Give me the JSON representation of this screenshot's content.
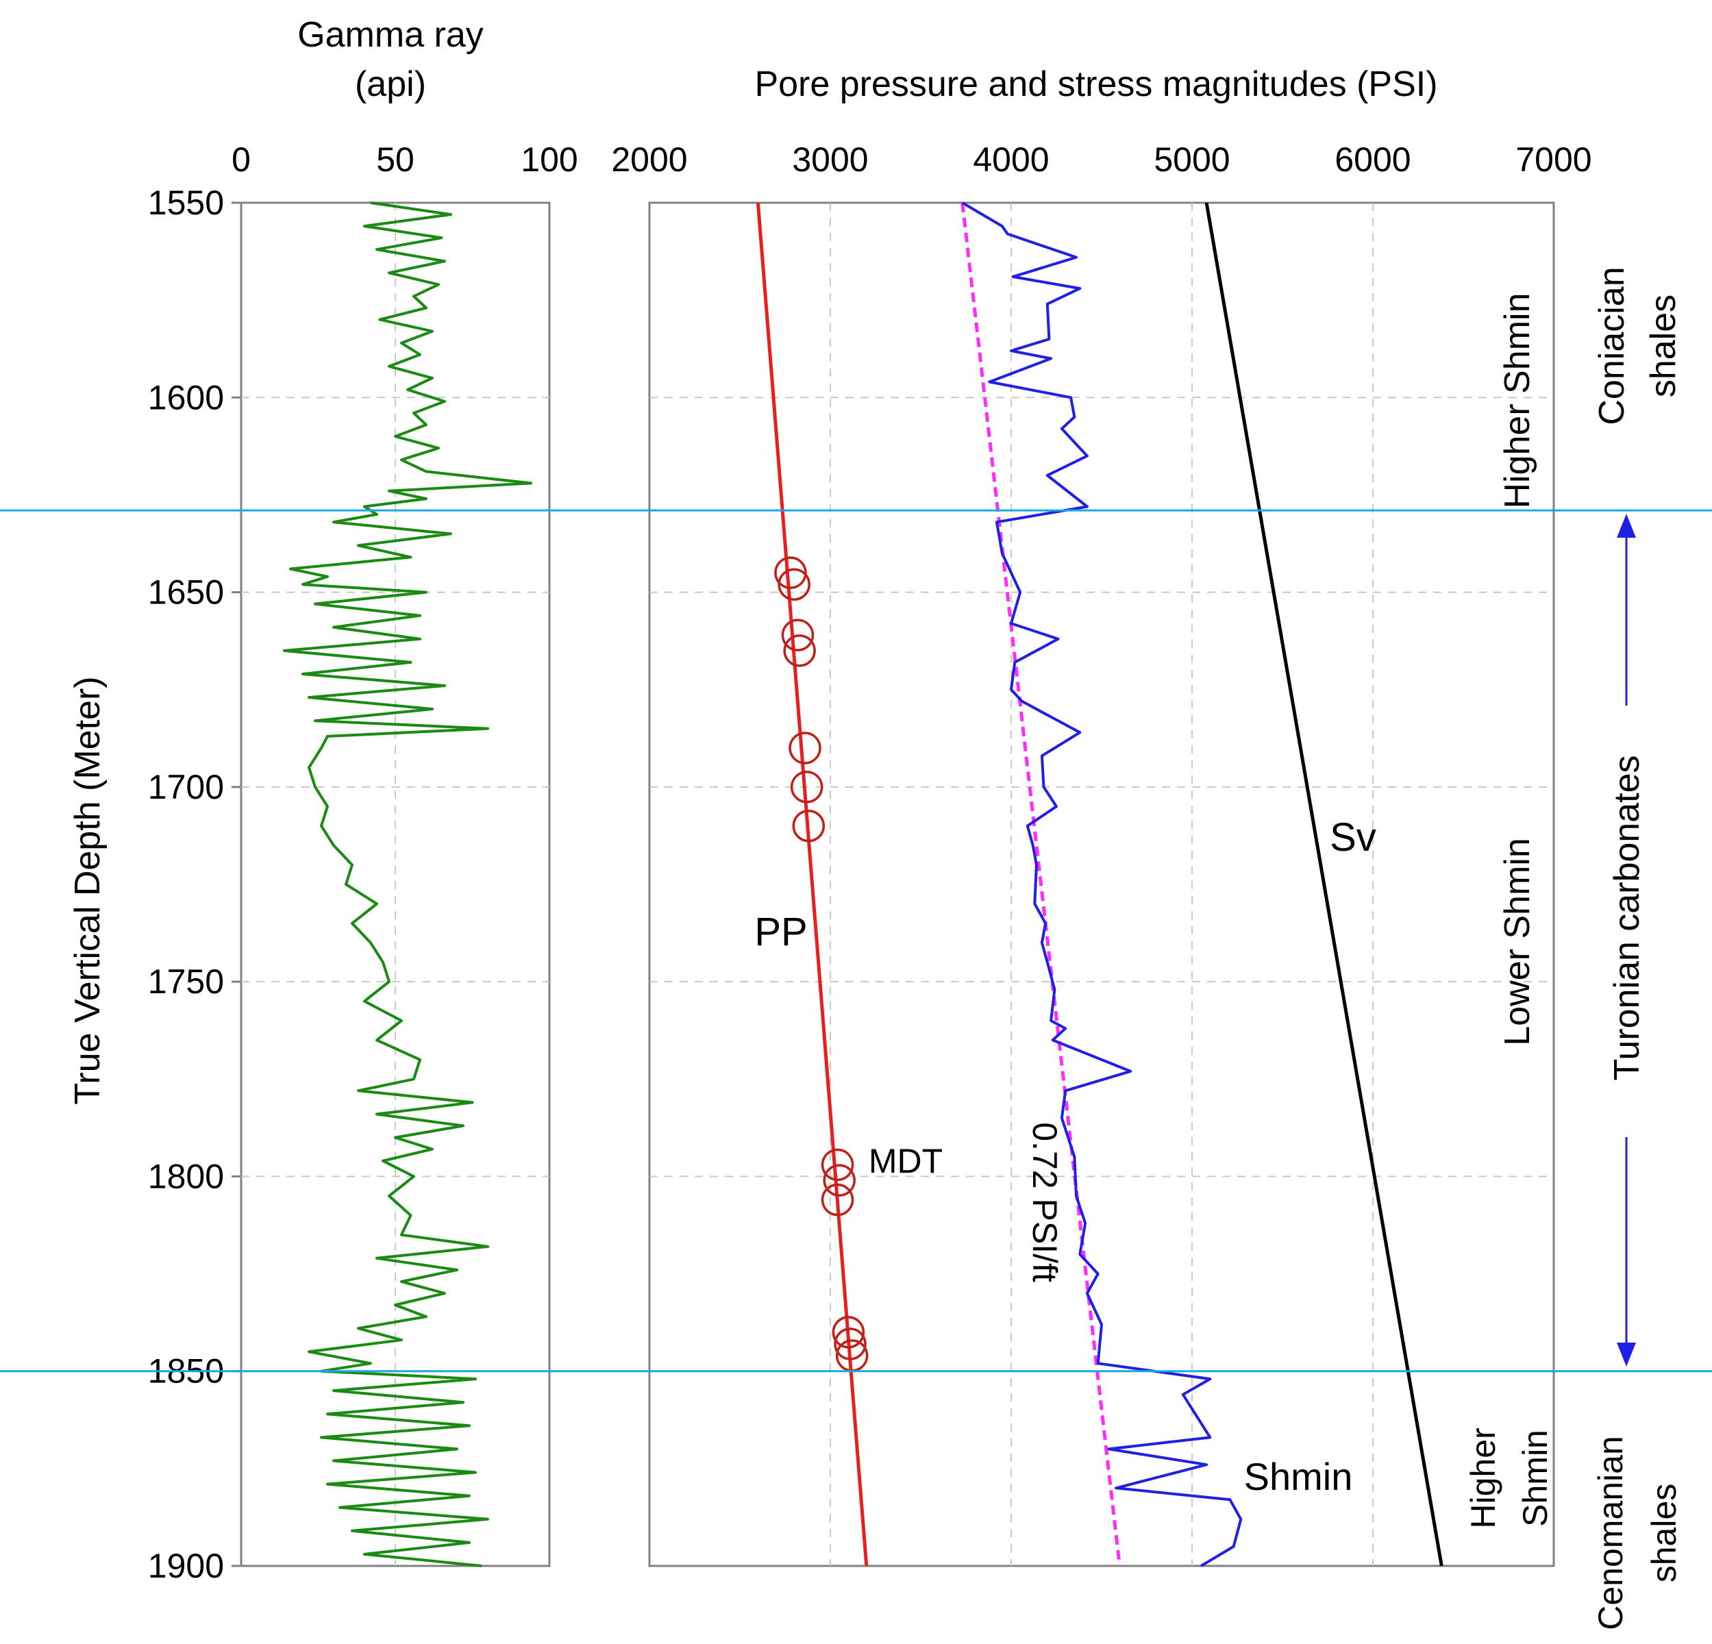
{
  "chart_data": [
    {
      "type": "line",
      "panel": "gamma-ray",
      "title_line1": "Gamma ray",
      "title_line2": "(api)",
      "ylabel": "True Vertical Depth (Meter)",
      "xlim": [
        0,
        100
      ],
      "ylim": [
        1550,
        1900
      ],
      "y_inverted": true,
      "xticks": [
        0,
        50,
        100
      ],
      "yticks": [
        1550,
        1600,
        1650,
        1700,
        1750,
        1800,
        1850,
        1900
      ],
      "grid": true,
      "series": [
        {
          "name": "Gamma ray",
          "color": "#1a8a12",
          "depth": [
            1550,
            1553,
            1556,
            1559,
            1562,
            1565,
            1568,
            1571,
            1574,
            1577,
            1580,
            1583,
            1586,
            1589,
            1592,
            1595,
            1598,
            1601,
            1604,
            1607,
            1610,
            1613,
            1616,
            1619,
            1622,
            1624,
            1626,
            1628,
            1630,
            1632,
            1635,
            1638,
            1641,
            1644,
            1646,
            1648,
            1650,
            1653,
            1656,
            1659,
            1662,
            1665,
            1668,
            1671,
            1674,
            1677,
            1680,
            1683,
            1685,
            1687,
            1690,
            1695,
            1700,
            1705,
            1710,
            1715,
            1720,
            1725,
            1730,
            1735,
            1740,
            1745,
            1750,
            1755,
            1760,
            1765,
            1770,
            1775,
            1778,
            1781,
            1784,
            1787,
            1790,
            1793,
            1796,
            1800,
            1805,
            1810,
            1815,
            1818,
            1821,
            1824,
            1827,
            1830,
            1833,
            1836,
            1839,
            1842,
            1845,
            1848,
            1850,
            1852,
            1855,
            1858,
            1861,
            1864,
            1867,
            1870,
            1873,
            1876,
            1879,
            1882,
            1885,
            1888,
            1891,
            1894,
            1897,
            1900
          ],
          "values": [
            42,
            68,
            40,
            65,
            44,
            66,
            48,
            64,
            56,
            60,
            45,
            62,
            52,
            58,
            48,
            62,
            54,
            66,
            56,
            60,
            50,
            64,
            52,
            60,
            94,
            48,
            60,
            40,
            44,
            30,
            68,
            38,
            55,
            16,
            28,
            20,
            60,
            24,
            58,
            30,
            58,
            14,
            55,
            20,
            66,
            22,
            62,
            24,
            80,
            28,
            26,
            22,
            24,
            28,
            26,
            30,
            36,
            34,
            44,
            36,
            42,
            46,
            48,
            40,
            52,
            44,
            58,
            56,
            38,
            75,
            44,
            72,
            50,
            62,
            46,
            56,
            48,
            55,
            52,
            80,
            44,
            70,
            52,
            66,
            50,
            60,
            38,
            52,
            22,
            42,
            26,
            76,
            30,
            72,
            28,
            74,
            26,
            70,
            30,
            76,
            28,
            74,
            32,
            80,
            36,
            74,
            40,
            78
          ]
        }
      ]
    },
    {
      "type": "line",
      "panel": "pressure-stress",
      "title": "Pore pressure and stress magnitudes (PSI)",
      "xlim": [
        2000,
        7000
      ],
      "ylim": [
        1550,
        1900
      ],
      "y_inverted": true,
      "xticks": [
        2000,
        3000,
        4000,
        5000,
        6000,
        7000
      ],
      "grid": true,
      "series": [
        {
          "name": "PP",
          "label": "PP",
          "color": "#e6201f",
          "x": [
            2600,
            3200
          ],
          "depth": [
            1550,
            1900
          ]
        },
        {
          "name": "Sv",
          "label": "Sv",
          "color": "#000000",
          "x": [
            5080,
            6380
          ],
          "depth": [
            1550,
            1900
          ]
        },
        {
          "name": "0.72 PSI/ft",
          "label": "0.72 PSI/ft",
          "color": "#ff2bff",
          "style": "dashed",
          "x": [
            3730,
            4600
          ],
          "depth": [
            1550,
            1900
          ]
        },
        {
          "name": "Shmin",
          "label": "Shmin",
          "color": "#1f1fe6",
          "x": [
            3730,
            3950,
            3980,
            4360,
            4010,
            4380,
            4200,
            4210,
            4000,
            4220,
            3880,
            4330,
            4350,
            4280,
            4420,
            4200,
            4420,
            3920,
            3950,
            4050,
            4000,
            4260,
            4020,
            4000,
            4060,
            4380,
            4170,
            4180,
            4250,
            4090,
            4120,
            4140,
            4130,
            4190,
            4170,
            4200,
            4240,
            4220,
            4300,
            4230,
            4660,
            4300,
            4280,
            4350,
            4360,
            4410,
            4380,
            4480,
            4420,
            4500,
            4480,
            5100,
            4950,
            5100,
            4540,
            5080,
            4580,
            5210,
            5270,
            5230,
            5050
          ],
          "depth": [
            1550,
            1556,
            1558,
            1564,
            1569,
            1572,
            1576,
            1585,
            1588,
            1590,
            1596,
            1600,
            1605,
            1608,
            1615,
            1620,
            1628,
            1632,
            1640,
            1650,
            1658,
            1662,
            1668,
            1675,
            1678,
            1686,
            1692,
            1700,
            1705,
            1710,
            1715,
            1720,
            1730,
            1735,
            1740,
            1745,
            1752,
            1760,
            1762,
            1765,
            1773,
            1778,
            1785,
            1795,
            1805,
            1812,
            1820,
            1825,
            1830,
            1838,
            1848,
            1852,
            1856,
            1867,
            1870,
            1874,
            1880,
            1883,
            1888,
            1895,
            1900
          ]
        }
      ],
      "mdt_points": {
        "label": "MDT",
        "color": "#c0201a",
        "x": [
          2780,
          2800,
          2820,
          2830,
          2860,
          2870,
          2880,
          3040,
          3050,
          3040,
          3100,
          3110,
          3120
        ],
        "depth": [
          1645,
          1648,
          1661,
          1665,
          1690,
          1700,
          1710,
          1797,
          1801,
          1806,
          1840,
          1843,
          1846
        ]
      }
    }
  ],
  "zones": {
    "boundaries": [
      1629,
      1850
    ],
    "boundary_color": "#1aa9e6",
    "stress_labels": [
      {
        "text": "Higher Shmin",
        "depth_center": 1590
      },
      {
        "text": "Lower Shmin",
        "depth_center": 1740
      },
      {
        "text_line1": "Higher",
        "text_line2": "Shmin",
        "depth_center": 1875
      }
    ],
    "formations": [
      {
        "text_line1": "Coniacian",
        "text_line2": "shales",
        "depth_center": 1590
      },
      {
        "text": "Turonian carbonates",
        "depth_center": 1740
      },
      {
        "text_line1": "Cenomanian",
        "text_line2": "shales",
        "depth_center": 1890
      }
    ],
    "arrow_color": "#1f1fe6"
  }
}
